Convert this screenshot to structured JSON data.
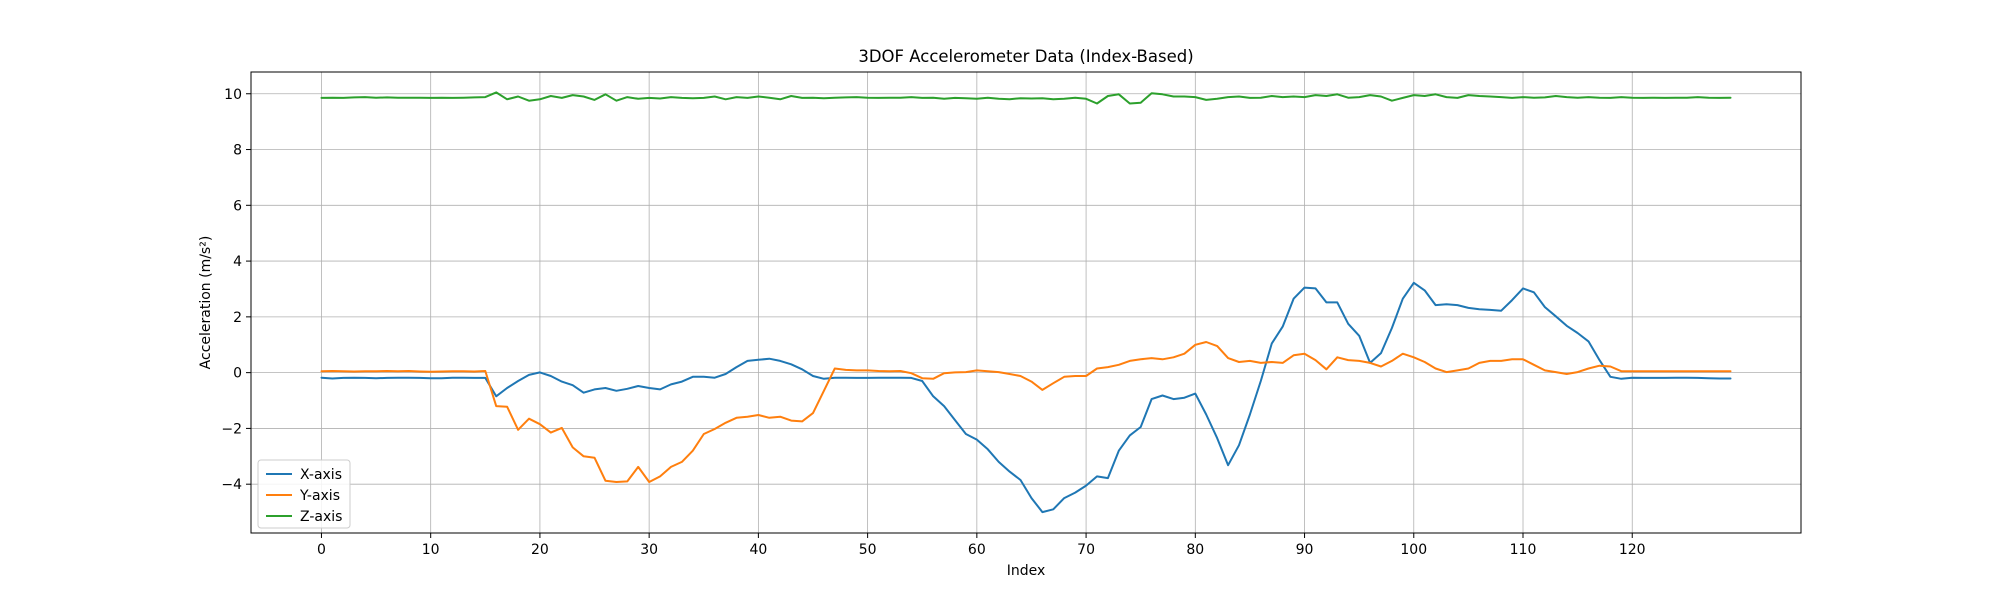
{
  "chart_data": {
    "type": "line",
    "title": "3DOF Accelerometer Data (Index-Based)",
    "xlabel": "Index",
    "ylabel": "Acceleration (m/s²)",
    "xlim": [
      -6.45,
      135.45
    ],
    "ylim": [
      -5.75,
      10.78
    ],
    "xticks": [
      0,
      10,
      20,
      30,
      40,
      50,
      60,
      70,
      80,
      90,
      100,
      110,
      120
    ],
    "yticks": [
      -4,
      -2,
      0,
      2,
      4,
      6,
      8,
      10
    ],
    "grid": true,
    "legend_position": "lower-left",
    "series": [
      {
        "name": "X-axis",
        "color": "#1f77b4",
        "values": [
          -0.18,
          -0.21,
          -0.19,
          -0.18,
          -0.19,
          -0.2,
          -0.19,
          -0.18,
          -0.18,
          -0.19,
          -0.2,
          -0.2,
          -0.18,
          -0.18,
          -0.19,
          -0.19,
          -0.85,
          -0.55,
          -0.3,
          -0.08,
          0.01,
          -0.12,
          -0.32,
          -0.45,
          -0.72,
          -0.6,
          -0.55,
          -0.65,
          -0.58,
          -0.48,
          -0.55,
          -0.6,
          -0.42,
          -0.32,
          -0.15,
          -0.15,
          -0.18,
          -0.05,
          0.2,
          0.42,
          0.46,
          0.5,
          0.42,
          0.3,
          0.12,
          -0.12,
          -0.22,
          -0.18,
          -0.18,
          -0.19,
          -0.19,
          -0.18,
          -0.18,
          -0.18,
          -0.19,
          -0.3,
          -0.85,
          -1.2,
          -1.7,
          -2.2,
          -2.4,
          -2.75,
          -3.2,
          -3.55,
          -3.85,
          -4.5,
          -5.0,
          -4.9,
          -4.5,
          -4.3,
          -4.05,
          -3.72,
          -3.78,
          -2.8,
          -2.25,
          -1.95,
          -0.95,
          -0.82,
          -0.95,
          -0.9,
          -0.75,
          -1.5,
          -2.35,
          -3.32,
          -2.6,
          -1.5,
          -0.3,
          1.05,
          1.65,
          2.65,
          3.05,
          3.02,
          2.52,
          2.52,
          1.75,
          1.32,
          0.35,
          0.7,
          1.6,
          2.65,
          3.22,
          2.95,
          2.42,
          2.45,
          2.42,
          2.32,
          2.27,
          2.25,
          2.22,
          2.6,
          3.02,
          2.88,
          2.35,
          2.02,
          1.68,
          1.42,
          1.12,
          0.45,
          -0.15,
          -0.22,
          -0.18,
          -0.19,
          -0.19,
          -0.19,
          -0.18,
          -0.18,
          -0.19,
          -0.2,
          -0.21,
          -0.21
        ]
      },
      {
        "name": "Y-axis",
        "color": "#ff7f0e",
        "values": [
          0.05,
          0.06,
          0.05,
          0.04,
          0.05,
          0.05,
          0.06,
          0.05,
          0.06,
          0.04,
          0.03,
          0.04,
          0.05,
          0.05,
          0.04,
          0.06,
          -1.2,
          -1.22,
          -2.05,
          -1.65,
          -1.85,
          -2.15,
          -1.98,
          -2.68,
          -3.0,
          -3.05,
          -3.88,
          -3.92,
          -3.9,
          -3.38,
          -3.92,
          -3.72,
          -3.38,
          -3.2,
          -2.8,
          -2.2,
          -2.02,
          -1.8,
          -1.62,
          -1.58,
          -1.52,
          -1.62,
          -1.58,
          -1.72,
          -1.75,
          -1.45,
          -0.65,
          0.15,
          0.1,
          0.08,
          0.08,
          0.06,
          0.05,
          0.06,
          -0.02,
          -0.2,
          -0.22,
          -0.02,
          0.01,
          0.02,
          0.08,
          0.05,
          0.02,
          -0.05,
          -0.12,
          -0.32,
          -0.62,
          -0.38,
          -0.15,
          -0.12,
          -0.12,
          0.15,
          0.2,
          0.28,
          0.42,
          0.48,
          0.52,
          0.48,
          0.55,
          0.68,
          1.0,
          1.1,
          0.95,
          0.52,
          0.38,
          0.42,
          0.35,
          0.38,
          0.35,
          0.62,
          0.68,
          0.45,
          0.12,
          0.55,
          0.45,
          0.42,
          0.35,
          0.22,
          0.42,
          0.68,
          0.55,
          0.38,
          0.15,
          0.02,
          0.08,
          0.15,
          0.35,
          0.42,
          0.42,
          0.48,
          0.48,
          0.28,
          0.08,
          0.02,
          -0.05,
          0.02,
          0.15,
          0.25,
          0.22,
          0.05,
          0.05,
          0.05,
          0.05,
          0.05,
          0.05,
          0.05,
          0.05,
          0.05,
          0.05,
          0.05
        ]
      },
      {
        "name": "Z-axis",
        "color": "#2ca02c",
        "values": [
          9.85,
          9.86,
          9.85,
          9.87,
          9.88,
          9.86,
          9.87,
          9.86,
          9.86,
          9.86,
          9.85,
          9.86,
          9.85,
          9.86,
          9.87,
          9.88,
          10.05,
          9.8,
          9.9,
          9.75,
          9.8,
          9.92,
          9.85,
          9.95,
          9.9,
          9.78,
          9.98,
          9.75,
          9.88,
          9.82,
          9.85,
          9.83,
          9.88,
          9.85,
          9.84,
          9.85,
          9.9,
          9.8,
          9.88,
          9.85,
          9.9,
          9.86,
          9.8,
          9.92,
          9.85,
          9.86,
          9.84,
          9.86,
          9.87,
          9.88,
          9.86,
          9.85,
          9.86,
          9.86,
          9.88,
          9.85,
          9.86,
          9.82,
          9.85,
          9.84,
          9.82,
          9.86,
          9.82,
          9.8,
          9.84,
          9.83,
          9.84,
          9.8,
          9.82,
          9.86,
          9.82,
          9.65,
          9.92,
          9.98,
          9.65,
          9.68,
          10.02,
          9.98,
          9.9,
          9.9,
          9.88,
          9.78,
          9.82,
          9.88,
          9.9,
          9.85,
          9.86,
          9.92,
          9.88,
          9.9,
          9.88,
          9.95,
          9.92,
          9.98,
          9.86,
          9.88,
          9.95,
          9.9,
          9.75,
          9.85,
          9.95,
          9.92,
          9.98,
          9.88,
          9.85,
          9.95,
          9.92,
          9.9,
          9.88,
          9.85,
          9.88,
          9.86,
          9.87,
          9.92,
          9.88,
          9.86,
          9.88,
          9.86,
          9.85,
          9.88,
          9.86,
          9.85,
          9.86,
          9.85,
          9.86,
          9.86,
          9.88,
          9.86,
          9.85,
          9.86
        ]
      }
    ]
  }
}
